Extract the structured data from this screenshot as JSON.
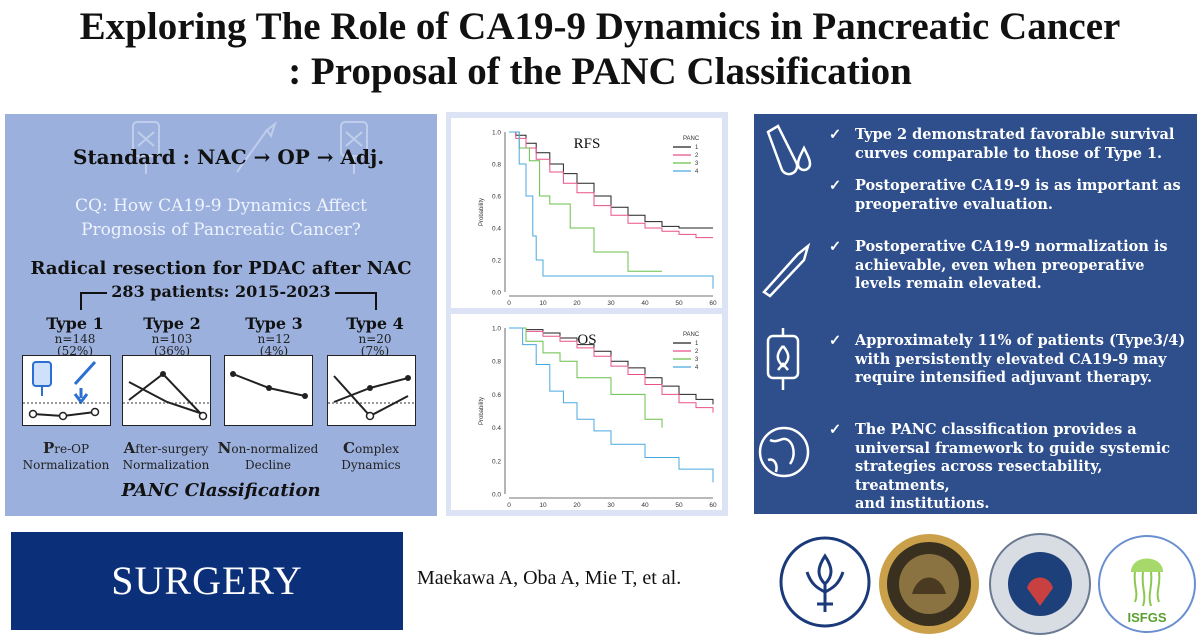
{
  "title": {
    "line1": "Exploring The Role of CA19-9 Dynamics in Pancreatic Cancer",
    "line2": ": Proposal of the PANC Classification"
  },
  "left": {
    "standard": "Standard : NAC → OP → Adj.",
    "cq_line1": "CQ: How CA19-9 Dynamics Affect",
    "cq_line2": "Prognosis of Pancreatic Cancer?",
    "radical": "Radical resection for PDAC after NAC",
    "patients": "283 patients: 2015-2023",
    "types": [
      {
        "name": "Type 1",
        "n": "n=148",
        "pct": "(52%)",
        "cap_initial": "P",
        "cap_rest": "re-OP",
        "cap_line2": "Normalization"
      },
      {
        "name": "Type 2",
        "n": "n=103",
        "pct": "(36%)",
        "cap_initial": "A",
        "cap_rest": "fter-surgery",
        "cap_line2": "Normalization"
      },
      {
        "name": "Type 3",
        "n": "n=12",
        "pct": "(4%)",
        "cap_initial": "N",
        "cap_rest": "on-normalized",
        "cap_line2": "Decline"
      },
      {
        "name": "Type 4",
        "n": "n=20",
        "pct": "(7%)",
        "cap_initial": "C",
        "cap_rest": "omplex",
        "cap_line2": "Dynamics"
      }
    ],
    "classification": "PANC Classification"
  },
  "chart_data": [
    {
      "type": "line",
      "title": "RFS",
      "ylabel": "Probability",
      "xlim": [
        0,
        60
      ],
      "ylim": [
        0,
        1.0
      ],
      "xticks": [
        "0",
        "10",
        "20",
        "30",
        "40",
        "50",
        "60"
      ],
      "yticks": [
        "0.0",
        "0.2",
        "0.4",
        "0.6",
        "0.8",
        "1.0"
      ],
      "legend_title": "PANC",
      "series": [
        {
          "name": "1",
          "color": "#222222",
          "x": [
            0,
            2,
            5,
            8,
            12,
            16,
            20,
            25,
            30,
            35,
            40,
            45,
            50,
            55,
            60
          ],
          "y": [
            1.0,
            0.98,
            0.93,
            0.87,
            0.8,
            0.74,
            0.68,
            0.6,
            0.53,
            0.48,
            0.44,
            0.41,
            0.4,
            0.4,
            0.4
          ]
        },
        {
          "name": "2",
          "color": "#e8508a",
          "x": [
            0,
            2,
            5,
            8,
            12,
            16,
            20,
            25,
            30,
            35,
            40,
            45,
            50,
            55,
            60
          ],
          "y": [
            1.0,
            0.96,
            0.9,
            0.83,
            0.75,
            0.68,
            0.62,
            0.54,
            0.48,
            0.43,
            0.4,
            0.38,
            0.36,
            0.34,
            0.34
          ]
        },
        {
          "name": "3",
          "color": "#6abf4b",
          "x": [
            0,
            3,
            6,
            9,
            12,
            18,
            25,
            35,
            45
          ],
          "y": [
            1.0,
            0.9,
            0.82,
            0.6,
            0.55,
            0.4,
            0.25,
            0.13,
            0.13
          ]
        },
        {
          "name": "4",
          "color": "#4aa8e0",
          "x": [
            0,
            3,
            5,
            7,
            8,
            10,
            13,
            58,
            60
          ],
          "y": [
            1.0,
            0.8,
            0.6,
            0.35,
            0.2,
            0.1,
            0.1,
            0.1,
            0.02
          ]
        }
      ]
    },
    {
      "type": "line",
      "title": "OS",
      "ylabel": "Probability",
      "xlim": [
        0,
        60
      ],
      "ylim": [
        0,
        1.0
      ],
      "xticks": [
        "0",
        "10",
        "20",
        "30",
        "40",
        "50",
        "60"
      ],
      "yticks": [
        "0.0",
        "0.2",
        "0.4",
        "0.6",
        "0.8",
        "1.0"
      ],
      "legend_title": "PANC",
      "series": [
        {
          "name": "1",
          "color": "#222222",
          "x": [
            0,
            5,
            10,
            15,
            20,
            25,
            30,
            35,
            40,
            45,
            50,
            55,
            60
          ],
          "y": [
            1.0,
            0.99,
            0.97,
            0.94,
            0.9,
            0.86,
            0.8,
            0.76,
            0.7,
            0.65,
            0.6,
            0.57,
            0.54
          ]
        },
        {
          "name": "2",
          "color": "#e8508a",
          "x": [
            0,
            5,
            10,
            15,
            20,
            25,
            30,
            35,
            40,
            45,
            50,
            55,
            60
          ],
          "y": [
            1.0,
            0.98,
            0.95,
            0.92,
            0.88,
            0.83,
            0.77,
            0.72,
            0.66,
            0.6,
            0.55,
            0.52,
            0.49
          ]
        },
        {
          "name": "3",
          "color": "#6abf4b",
          "x": [
            0,
            5,
            10,
            15,
            20,
            30,
            40,
            45
          ],
          "y": [
            1.0,
            0.92,
            0.85,
            0.8,
            0.7,
            0.6,
            0.45,
            0.4
          ]
        },
        {
          "name": "4",
          "color": "#4aa8e0",
          "x": [
            0,
            4,
            8,
            12,
            16,
            20,
            25,
            30,
            40,
            50,
            58,
            60
          ],
          "y": [
            1.0,
            0.9,
            0.78,
            0.62,
            0.55,
            0.45,
            0.38,
            0.3,
            0.22,
            0.15,
            0.15,
            0.07
          ]
        }
      ]
    }
  ],
  "right": {
    "points": [
      {
        "lines": [
          "Type 2 demonstrated favorable survival",
          "curves comparable to those of Type 1."
        ]
      },
      {
        "lines": [
          "Postoperative CA19-9 is as important as",
          "preoperative evaluation."
        ]
      },
      {
        "lines": [
          "Postoperative CA19-9 normalization is",
          "achievable, even when preoperative",
          "levels remain elevated."
        ]
      },
      {
        "lines": [
          "Approximately 11% of patients (Type3/4)",
          "with persistently elevated CA19-9 may",
          "require intensified adjuvant therapy."
        ]
      },
      {
        "lines": [
          "The PANC classification provides a",
          "universal framework to guide systemic",
          "strategies across resectability, treatments,",
          "and institutions."
        ]
      }
    ],
    "check": "✓"
  },
  "footer": {
    "journal": "SURGERY",
    "authors": "Maekawa A, Oba A, Mie T, et al.",
    "isfgs": "ISFGS"
  },
  "colors": {
    "left_bg": "#9bb0dc",
    "right_bg": "#2f4f8c",
    "journal_bg": "#0b2f78"
  }
}
